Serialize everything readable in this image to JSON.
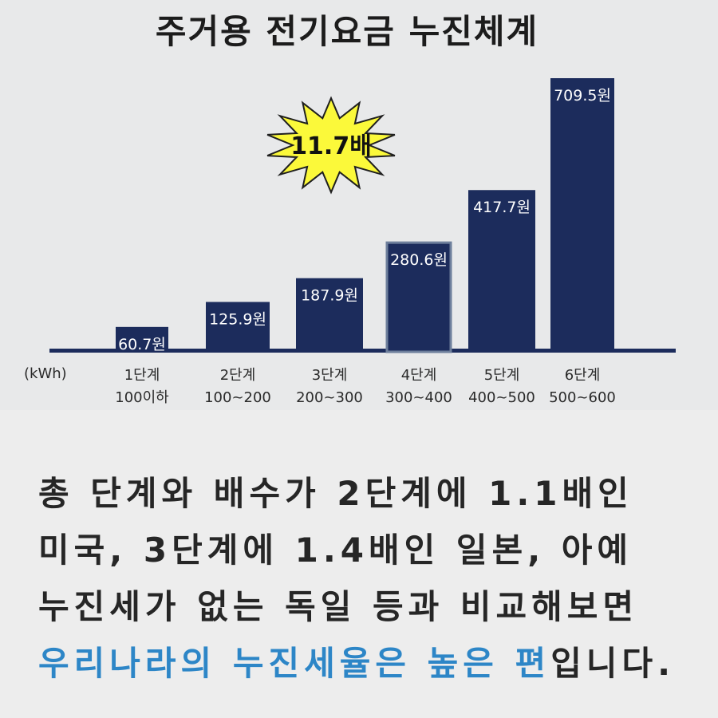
{
  "chart_data": {
    "type": "bar",
    "title": "주거용 전기요금 누진체계",
    "unit_label": "(kWh)",
    "categories": [
      {
        "stage": "1단계",
        "range": "100이하"
      },
      {
        "stage": "2단계",
        "range": "100~200"
      },
      {
        "stage": "3단계",
        "range": "200~300"
      },
      {
        "stage": "4단계",
        "range": "300~400"
      },
      {
        "stage": "5단계",
        "range": "400~500"
      },
      {
        "stage": "6단계",
        "range": "500~600"
      }
    ],
    "values": [
      60.7,
      125.9,
      187.9,
      280.6,
      417.7,
      709.5
    ],
    "value_labels": [
      "60.7원",
      "125.9원",
      "187.9원",
      "280.6원",
      "417.7원",
      "709.5원"
    ],
    "highlight_index": 3,
    "burst_label": "11.7배",
    "colors": {
      "bar": "#1c2c5c",
      "highlight_border": "#6e7f9c",
      "burst": "#fbf93a",
      "axis": "#1c2c5c"
    }
  },
  "caption": {
    "lines": [
      [
        {
          "text": "총 단계와 배수가 2단계에 1.1배인",
          "hl": false
        }
      ],
      [
        {
          "text": "미국, 3단계에 1.4배인 일본, 아예",
          "hl": false
        }
      ],
      [
        {
          "text": "누진세가 없는 독일 등과 비교해보면",
          "hl": false
        }
      ],
      [
        {
          "text": "우리나라의 누진세율은 높은 편",
          "hl": true
        },
        {
          "text": "입니다.",
          "hl": false
        }
      ]
    ],
    "highlight_color": "#2d86c7"
  }
}
